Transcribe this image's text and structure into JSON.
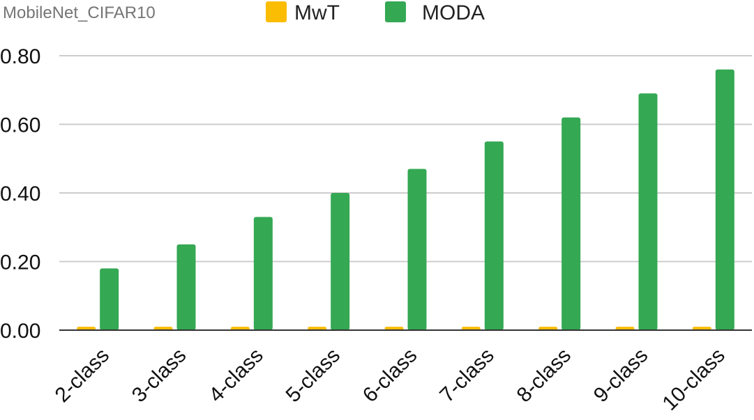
{
  "chart_data": {
    "type": "bar",
    "title": "MobileNet_CIFAR10",
    "xlabel": "",
    "ylabel": "",
    "categories": [
      "2-class",
      "3-class",
      "4-class",
      "5-class",
      "6-class",
      "7-class",
      "8-class",
      "9-class",
      "10-class"
    ],
    "series": [
      {
        "name": "MwT",
        "color": "#fbbc04",
        "values": [
          0.01,
          0.01,
          0.01,
          0.01,
          0.01,
          0.01,
          0.01,
          0.01,
          0.01
        ]
      },
      {
        "name": "MODA",
        "color": "#34a853",
        "values": [
          0.18,
          0.25,
          0.33,
          0.4,
          0.47,
          0.55,
          0.62,
          0.69,
          0.76
        ]
      }
    ],
    "ylim": [
      0,
      0.8
    ],
    "yticks": [
      "0.00",
      "0.20",
      "0.40",
      "0.60",
      "0.80"
    ],
    "grid": true,
    "legend_position": "top"
  }
}
